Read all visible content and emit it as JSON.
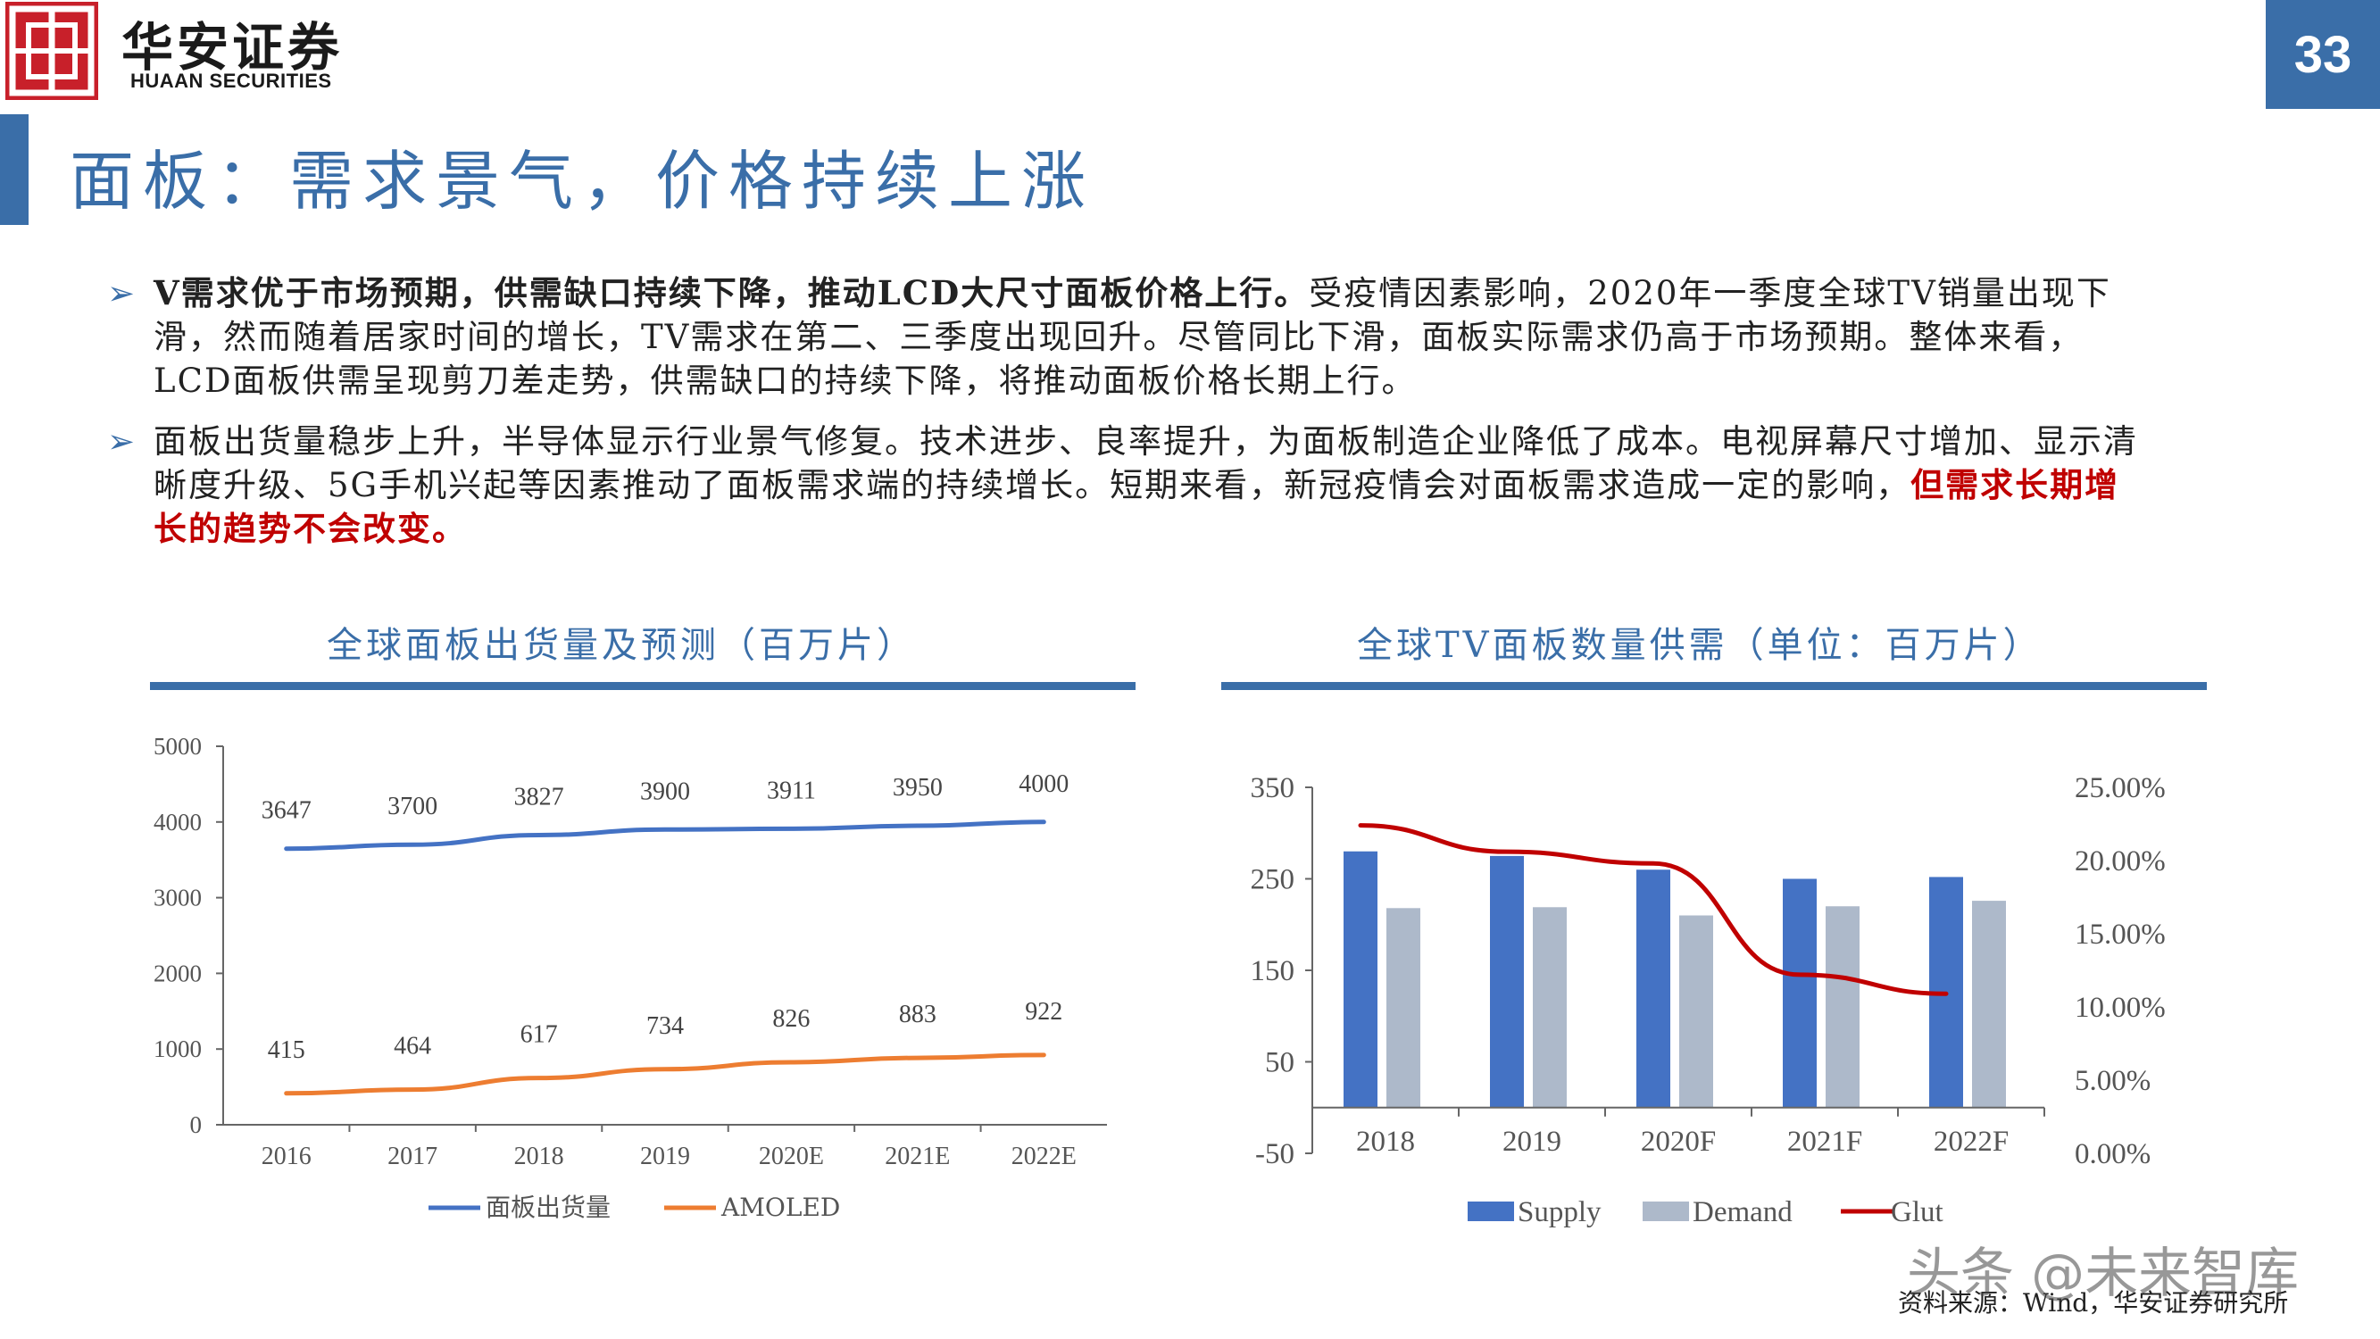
{
  "header": {
    "logo_cn": "华安证券",
    "logo_en": "HUAAN SECURITIES",
    "page_number": "33",
    "brand_color": "#c8202a",
    "accent_color": "#3a6ea8"
  },
  "title": "面板：需求景气，价格持续上涨",
  "bullets": [
    {
      "bold": "V需求优于市场预期，供需缺口持续下降，推动LCD大尺寸面板价格上行。",
      "text": "受疫情因素影响，2020年一季度全球TV销量出现下滑，然而随着居家时间的增长，TV需求在第二、三季度出现回升。尽管同比下滑，面板实际需求仍高于市场预期。整体来看，LCD面板供需呈现剪刀差走势，供需缺口的持续下降，将推动面板价格长期上行。"
    },
    {
      "text": "面板出货量稳步上升，半导体显示行业景气修复。技术进步、良率提升，为面板制造企业降低了成本。电视屏幕尺寸增加、显示清晰度升级、5G手机兴起等因素推动了面板需求端的持续增长。短期来看，新冠疫情会对面板需求造成一定的影响，",
      "red": "但需求长期增长的趋势不会改变。"
    }
  ],
  "chart_data": [
    {
      "type": "line",
      "title": "全球面板出货量及预测（百万片）",
      "x": [
        "2016",
        "2017",
        "2018",
        "2019",
        "2020E",
        "2021E",
        "2022E"
      ],
      "ylim": [
        0,
        5000
      ],
      "yticks": [
        "0",
        "1000",
        "2000",
        "3000",
        "4000",
        "5000"
      ],
      "legend_position": "bottom",
      "series": [
        {
          "name": "面板出货量",
          "color": "#4472c4",
          "values": [
            3647,
            3700,
            3827,
            3900,
            3911,
            3950,
            4000
          ]
        },
        {
          "name": "AMOLED",
          "color": "#ed7d31",
          "values": [
            415,
            464,
            617,
            734,
            826,
            883,
            922
          ]
        }
      ]
    },
    {
      "type": "bar",
      "title": "全球TV面板数量供需（单位：百万片）",
      "categories": [
        "2018",
        "2019",
        "2020F",
        "2021F",
        "2022F"
      ],
      "ylim": [
        -50,
        350
      ],
      "yticks": [
        "-50",
        "50",
        "150",
        "250",
        "350"
      ],
      "y2lim": [
        0,
        25
      ],
      "y2ticks": [
        "0.00%",
        "5.00%",
        "10.00%",
        "15.00%",
        "20.00%",
        "25.00%"
      ],
      "legend_position": "bottom",
      "series": [
        {
          "name": "Supply",
          "type": "bar",
          "color": "#4472c4",
          "values": [
            280,
            275,
            260,
            250,
            252
          ]
        },
        {
          "name": "Demand",
          "type": "bar",
          "color": "#adb9ca",
          "values": [
            218,
            219,
            210,
            220,
            226
          ]
        },
        {
          "name": "Glut",
          "type": "line",
          "axis": "right",
          "color": "#c00000",
          "values": [
            22.4,
            20.6,
            19.8,
            12.2,
            10.9
          ]
        }
      ]
    }
  ],
  "source": "资料来源：Wind，华安证券研究所",
  "watermark": "头条 @未来智库"
}
